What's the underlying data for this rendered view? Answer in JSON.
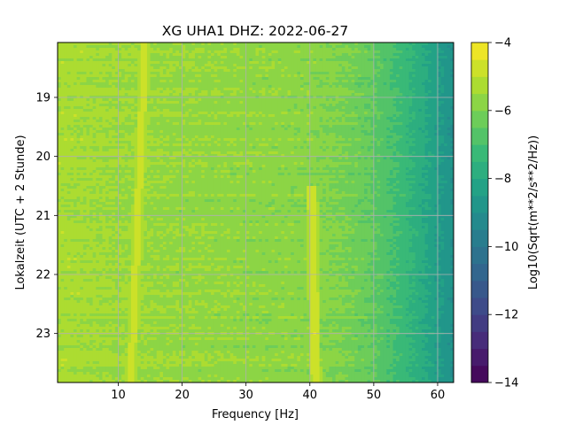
{
  "chart_data": {
    "type": "heatmap",
    "title": "XG UHA1  DHZ: 2022-06-27",
    "xlabel": "Frequency [Hz]",
    "ylabel": "Lokalzeit (UTC + 2 Stunde)",
    "xlim": [
      0.5,
      62.5
    ],
    "ylim": [
      23.83,
      18.07
    ],
    "x_ticks": [
      10,
      20,
      30,
      40,
      50,
      60
    ],
    "x_tick_labels": [
      "10",
      "20",
      "30",
      "40",
      "50",
      "60"
    ],
    "y_ticks": [
      19,
      20,
      21,
      22,
      23
    ],
    "y_tick_labels": [
      "19",
      "20",
      "21",
      "22",
      "23"
    ],
    "grid": true,
    "colormap": "viridis",
    "colorbar": {
      "label": "Log10(Sqrt(m**2/s**2/Hz))",
      "range": [
        -14,
        -4
      ],
      "ticks": [
        -14,
        -12,
        -10,
        -8,
        -6,
        -4
      ],
      "tick_labels": [
        "−14",
        "−12",
        "−10",
        "−8",
        "−6",
        "−4"
      ],
      "levels": 20
    },
    "baseline_log10": [
      {
        "freq": 0.5,
        "value": -5.3
      },
      {
        "freq": 10,
        "value": -5.5
      },
      {
        "freq": 20,
        "value": -5.6
      },
      {
        "freq": 30,
        "value": -5.7
      },
      {
        "freq": 40,
        "value": -5.8
      },
      {
        "freq": 45,
        "value": -6.0
      },
      {
        "freq": 50,
        "value": -6.5
      },
      {
        "freq": 55,
        "value": -7.3
      },
      {
        "freq": 60,
        "value": -8.4
      },
      {
        "freq": 62.5,
        "value": -9.0
      }
    ],
    "lines": [
      {
        "freq_start": 14.2,
        "freq_end": 12.0,
        "time_start": 18.07,
        "time_end": 23.83,
        "value": -4.6
      },
      {
        "freq_start": 40.3,
        "freq_end": 40.9,
        "time_start": 20.5,
        "time_end": 23.83,
        "value": -4.5
      }
    ]
  }
}
